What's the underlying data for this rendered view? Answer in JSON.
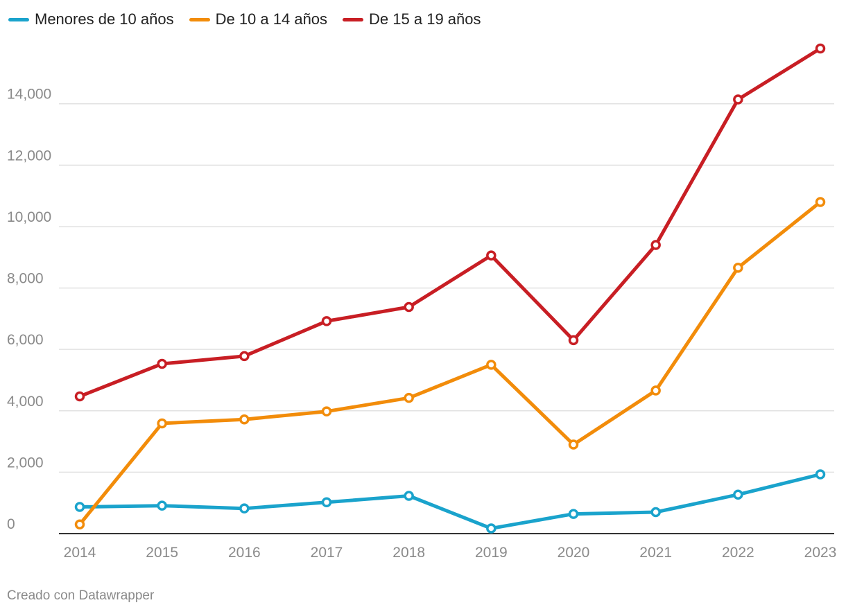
{
  "legend": [
    {
      "label": "Menores de 10 años",
      "color": "#1aa3cc"
    },
    {
      "label": "De 10 a 14 años",
      "color": "#f28c0a"
    },
    {
      "label": "De 15 a 19 años",
      "color": "#c81e24"
    }
  ],
  "chart_data": {
    "type": "line",
    "title": "",
    "xlabel": "",
    "ylabel": "",
    "x": [
      "2014",
      "2015",
      "2016",
      "2017",
      "2018",
      "2019",
      "2020",
      "2021",
      "2022",
      "2023"
    ],
    "ylim": [
      0,
      15800
    ],
    "yticks": [
      0,
      2000,
      4000,
      6000,
      8000,
      10000,
      12000,
      14000
    ],
    "ytick_labels": [
      "0",
      "2,000",
      "4,000",
      "6,000",
      "8,000",
      "10,000",
      "12,000",
      "14,000"
    ],
    "grid": true,
    "legend_position": "top-left",
    "series": [
      {
        "name": "Menores de 10 años",
        "color": "#1aa3cc",
        "values": [
          870,
          910,
          820,
          1020,
          1230,
          170,
          640,
          700,
          1270,
          1930
        ]
      },
      {
        "name": "De 10 a 14 años",
        "color": "#f28c0a",
        "values": [
          300,
          3590,
          3720,
          3980,
          4420,
          5500,
          2900,
          4660,
          8660,
          10800
        ]
      },
      {
        "name": "De 15 a 19 años",
        "color": "#c81e24",
        "values": [
          4470,
          5530,
          5780,
          6920,
          7380,
          9060,
          6300,
          9400,
          14140,
          15800
        ]
      }
    ]
  },
  "footer": {
    "credit": "Creado con Datawrapper"
  }
}
